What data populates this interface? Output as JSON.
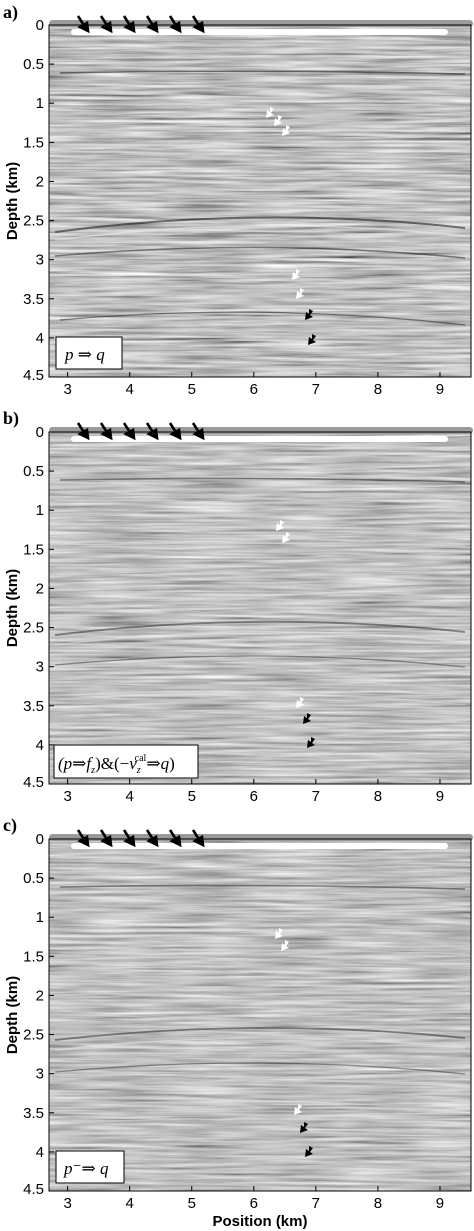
{
  "figure": {
    "x_label": "Position (km)",
    "y_label": "Depth (km)",
    "panels": [
      {
        "letter": "a)",
        "label": "p ⇒ q"
      },
      {
        "letter": "b)",
        "label": "(p⇒f_z)&(−v_z^cal⇒q)"
      },
      {
        "letter": "c)",
        "label": "p⁻⇒ q"
      }
    ],
    "x_ticks": [
      "3",
      "4",
      "5",
      "6",
      "7",
      "8",
      "9"
    ],
    "y_ticks": [
      "0",
      "0.5",
      "1",
      "1.5",
      "2",
      "2.5",
      "3",
      "3.5",
      "4",
      "4.5"
    ],
    "x_range_km": [
      2.7,
      9.5
    ],
    "depth_range_km": [
      0,
      4.5
    ]
  },
  "colors": {
    "background_gray": "#8c8c8c",
    "arrow_black": "#000000",
    "arrow_white": "#ffffff",
    "cable_white": "#ffffff",
    "sea_surface": "#9a9a9a"
  }
}
